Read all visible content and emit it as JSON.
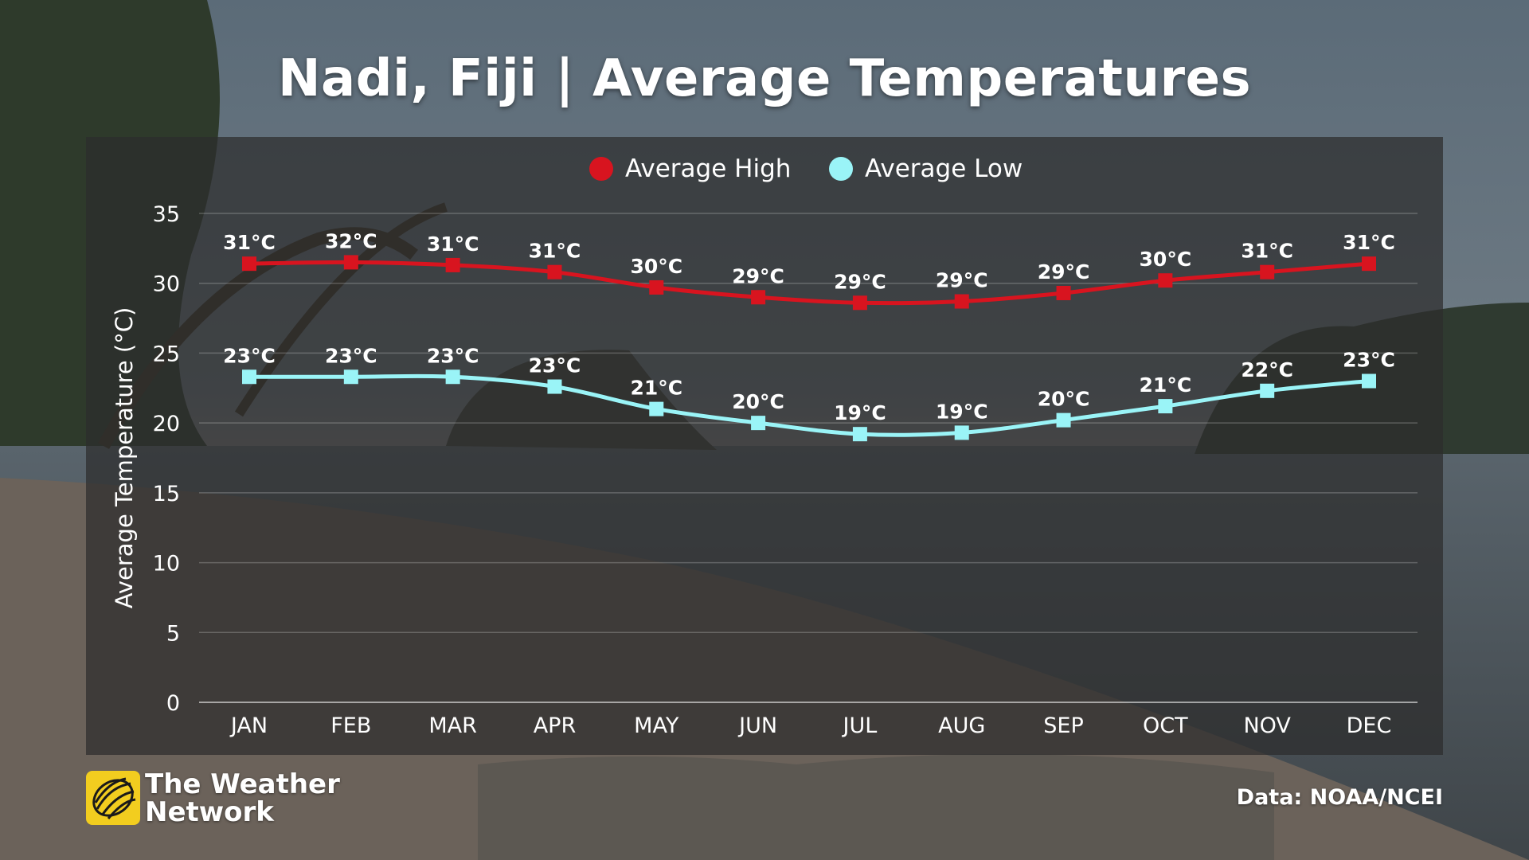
{
  "page": {
    "title": "Nadi, Fiji | Average Temperatures",
    "source": "Data: NOAA/NCEI",
    "brand_line1": "The Weather",
    "brand_line2": "Network"
  },
  "colors": {
    "high": "#d8141f",
    "low": "#9af4f7",
    "logo_yellow": "#f2cd1f"
  },
  "chart_data": {
    "type": "line",
    "title": "Nadi, Fiji | Average Temperatures",
    "ylabel": "Average Temperature (°C)",
    "xlabel": "",
    "ylim": [
      0,
      35
    ],
    "yticks": [
      0,
      5,
      10,
      15,
      20,
      25,
      30,
      35
    ],
    "grid": true,
    "legend": "top-center",
    "categories": [
      "JAN",
      "FEB",
      "MAR",
      "APR",
      "MAY",
      "JUN",
      "JUL",
      "AUG",
      "SEP",
      "OCT",
      "NOV",
      "DEC"
    ],
    "series": [
      {
        "name": "Average High",
        "color": "#d8141f",
        "values": [
          31.4,
          31.5,
          31.3,
          30.8,
          29.7,
          29.0,
          28.6,
          28.7,
          29.3,
          30.2,
          30.8,
          31.4
        ],
        "labels": [
          "31°C",
          "32°C",
          "31°C",
          "31°C",
          "30°C",
          "29°C",
          "29°C",
          "29°C",
          "29°C",
          "30°C",
          "31°C",
          "31°C"
        ]
      },
      {
        "name": "Average Low",
        "color": "#9af4f7",
        "values": [
          23.3,
          23.3,
          23.3,
          22.6,
          21.0,
          20.0,
          19.2,
          19.3,
          20.2,
          21.2,
          22.3,
          23.0
        ],
        "labels": [
          "23°C",
          "23°C",
          "23°C",
          "23°C",
          "21°C",
          "20°C",
          "19°C",
          "19°C",
          "20°C",
          "21°C",
          "22°C",
          "23°C"
        ]
      }
    ]
  }
}
